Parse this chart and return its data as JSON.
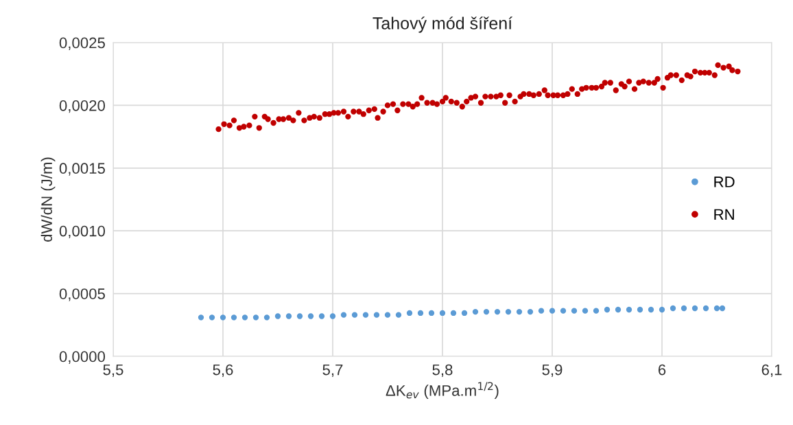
{
  "chart_data": {
    "type": "scatter",
    "title": "Tahový mód šíření",
    "xlabel": "ΔK$_{ev}$ (MPa.m$^{1/2}$)",
    "ylabel": "dW/dN (J/m)",
    "xlim": [
      5.5,
      6.1
    ],
    "xticks": [
      {
        "value": 5.5,
        "label": "5,5"
      },
      {
        "value": 5.6,
        "label": "5,6"
      },
      {
        "value": 5.7,
        "label": "5,7"
      },
      {
        "value": 5.8,
        "label": "5,8"
      },
      {
        "value": 5.9,
        "label": "5,9"
      },
      {
        "value": 6.0,
        "label": "6"
      },
      {
        "value": 6.1,
        "label": "6,1"
      }
    ],
    "ylim": [
      0,
      0.0025
    ],
    "yticks": [
      {
        "value": 0,
        "label": "0,0000"
      },
      {
        "value": 0.0005,
        "label": "0,0005"
      },
      {
        "value": 0.001,
        "label": "0,0010"
      },
      {
        "value": 0.0015,
        "label": "0,0015"
      },
      {
        "value": 0.002,
        "label": "0,0020"
      },
      {
        "value": 0.0025,
        "label": "0,0025"
      }
    ],
    "grid": true,
    "legend": "right",
    "marker": "circle",
    "series": [
      {
        "name": "RD",
        "color": "#5b9bd5",
        "x": [
          5.58,
          5.59,
          5.6,
          5.61,
          5.62,
          5.63,
          5.64,
          5.65,
          5.66,
          5.67,
          5.68,
          5.69,
          5.7,
          5.71,
          5.72,
          5.73,
          5.74,
          5.75,
          5.76,
          5.77,
          5.78,
          5.79,
          5.8,
          5.81,
          5.82,
          5.83,
          5.84,
          5.85,
          5.86,
          5.87,
          5.88,
          5.89,
          5.9,
          5.91,
          5.92,
          5.93,
          5.94,
          5.95,
          5.96,
          5.97,
          5.98,
          5.99,
          6.0,
          6.01,
          6.02,
          6.03,
          6.04,
          6.05,
          6.055
        ],
        "values": [
          0.00031,
          0.00031,
          0.00031,
          0.00031,
          0.00031,
          0.00031,
          0.00031,
          0.00032,
          0.00032,
          0.00032,
          0.00032,
          0.00032,
          0.00032,
          0.00033,
          0.00033,
          0.00033,
          0.00033,
          0.00033,
          0.00033,
          0.000345,
          0.000345,
          0.000345,
          0.000345,
          0.000345,
          0.000345,
          0.000355,
          0.000355,
          0.000355,
          0.000355,
          0.000355,
          0.000355,
          0.000363,
          0.000363,
          0.000363,
          0.000363,
          0.000363,
          0.000363,
          0.000372,
          0.000372,
          0.000372,
          0.000372,
          0.000372,
          0.000372,
          0.000383,
          0.000383,
          0.000383,
          0.000383,
          0.000383,
          0.000383
        ]
      },
      {
        "name": "RN",
        "color": "#c00000",
        "x": [
          5.596,
          5.601,
          5.606,
          5.61,
          5.615,
          5.619,
          5.624,
          5.629,
          5.633,
          5.638,
          5.641,
          5.646,
          5.651,
          5.655,
          5.66,
          5.664,
          5.669,
          5.674,
          5.679,
          5.683,
          5.688,
          5.693,
          5.697,
          5.701,
          5.705,
          5.71,
          5.714,
          5.719,
          5.724,
          5.728,
          5.733,
          5.738,
          5.741,
          5.746,
          5.75,
          5.755,
          5.759,
          5.764,
          5.769,
          5.773,
          5.777,
          5.781,
          5.786,
          5.791,
          5.795,
          5.8,
          5.803,
          5.808,
          5.813,
          5.818,
          5.822,
          5.826,
          5.83,
          5.835,
          5.839,
          5.844,
          5.849,
          5.853,
          5.857,
          5.861,
          5.866,
          5.871,
          5.874,
          5.879,
          5.883,
          5.888,
          5.893,
          5.896,
          5.901,
          5.905,
          5.91,
          5.914,
          5.918,
          5.923,
          5.927,
          5.931,
          5.936,
          5.94,
          5.945,
          5.948,
          5.953,
          5.958,
          5.963,
          5.966,
          5.97,
          5.975,
          5.979,
          5.983,
          5.988,
          5.993,
          5.996,
          6.001,
          6.005,
          6.008,
          6.013,
          6.018,
          6.023,
          6.026,
          6.03,
          6.035,
          6.039,
          6.043,
          6.048,
          6.051,
          6.056,
          6.061,
          6.064,
          6.069
        ],
        "values": [
          0.00181,
          0.00185,
          0.00184,
          0.00188,
          0.00182,
          0.00183,
          0.00184,
          0.00191,
          0.00182,
          0.00191,
          0.00189,
          0.00186,
          0.00189,
          0.00189,
          0.0019,
          0.00188,
          0.00194,
          0.00188,
          0.0019,
          0.00191,
          0.0019,
          0.00193,
          0.00193,
          0.00194,
          0.00194,
          0.00195,
          0.00191,
          0.00195,
          0.00195,
          0.00193,
          0.00196,
          0.00197,
          0.0019,
          0.00195,
          0.002,
          0.00201,
          0.00196,
          0.00201,
          0.00201,
          0.00199,
          0.00201,
          0.00206,
          0.00202,
          0.00202,
          0.00201,
          0.00203,
          0.00206,
          0.00203,
          0.00202,
          0.00199,
          0.00203,
          0.00206,
          0.00207,
          0.00202,
          0.00207,
          0.00207,
          0.00207,
          0.00208,
          0.00202,
          0.00208,
          0.00203,
          0.00207,
          0.00209,
          0.00209,
          0.00208,
          0.00209,
          0.00212,
          0.00208,
          0.00208,
          0.00208,
          0.00208,
          0.00209,
          0.00213,
          0.00209,
          0.00213,
          0.00214,
          0.00214,
          0.00214,
          0.00215,
          0.00218,
          0.00218,
          0.00212,
          0.00217,
          0.00215,
          0.00219,
          0.00213,
          0.00218,
          0.00219,
          0.00218,
          0.00218,
          0.00221,
          0.00214,
          0.00222,
          0.00224,
          0.00224,
          0.0022,
          0.00224,
          0.00223,
          0.00227,
          0.00226,
          0.00226,
          0.00226,
          0.00224,
          0.00232,
          0.0023,
          0.00231,
          0.00228,
          0.00227
        ]
      }
    ]
  }
}
